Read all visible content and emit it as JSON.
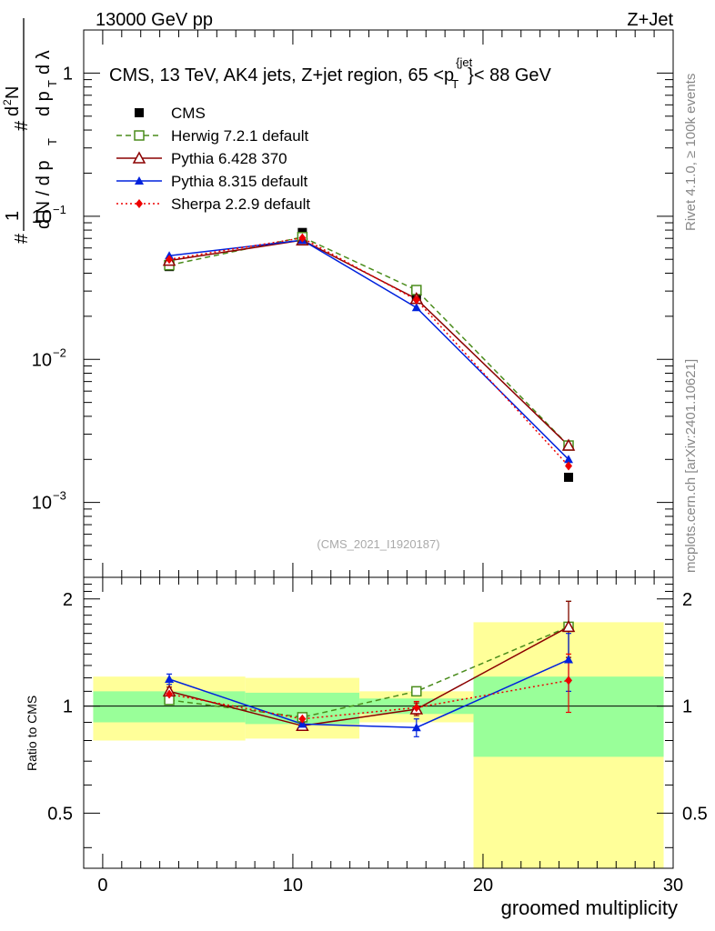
{
  "header": {
    "left": "13000 GeV pp",
    "right": "Z+Jet"
  },
  "side": {
    "rivet": "Rivet 4.1.0, ≥ 100k events",
    "mcplots": "mcplots.cern.ch [arXiv:2401.10621]"
  },
  "watermark": "(CMS_2021_I1920187)",
  "chart_data": {
    "type": "line",
    "title_parts": {
      "main": "CMS, 13 TeV, AK4 jets, Z+jet region, 65 <p",
      "sup": "{jet",
      "sub": "T",
      "tail": "}< 88 GeV"
    },
    "xlabel": "groomed multiplicity",
    "ylabel": {
      "one": "1",
      "hashN": "#",
      "dN": "d N / d p",
      "T": "T",
      "hash2": "#",
      "d2N": "d",
      "two": "2",
      "N2": "N",
      "dpT": "d p",
      "dl": "d λ"
    },
    "ratio_ylabel": "Ratio to CMS",
    "xlim": [
      -1,
      30
    ],
    "x_ticks": [
      "0",
      "10",
      "20",
      "30"
    ],
    "main_ylim": [
      0.0003,
      2.0
    ],
    "main_y_ticks": [
      {
        "value": 1,
        "label": "1"
      },
      {
        "value": 0.1,
        "base": "10",
        "exp": "−1"
      },
      {
        "value": 0.01,
        "base": "10",
        "exp": "−2"
      },
      {
        "value": 0.001,
        "base": "10",
        "exp": "−3"
      }
    ],
    "ratio_ylim": [
      0.35,
      2.3
    ],
    "ratio_y_ticks": [
      "0.5",
      "1",
      "2"
    ],
    "bins": [
      {
        "low": -0.5,
        "high": 7.5,
        "center": 3.5
      },
      {
        "low": 7.5,
        "high": 13.5,
        "center": 10.5
      },
      {
        "low": 13.5,
        "high": 19.5,
        "center": 16.5
      },
      {
        "low": 19.5,
        "high": 29.5,
        "center": 24.5
      }
    ],
    "data": {
      "name": "CMS",
      "values": [
        0.0445,
        0.077,
        0.027,
        0.0015
      ],
      "band_inner": [
        [
          0.9,
          1.1
        ],
        [
          0.89,
          1.09
        ],
        [
          0.95,
          1.05
        ],
        [
          0.72,
          1.21
        ]
      ],
      "band_outer": [
        [
          0.8,
          1.21
        ],
        [
          0.81,
          1.2
        ],
        [
          0.9,
          1.1
        ],
        [
          0.3,
          1.72
        ]
      ]
    },
    "series": [
      {
        "name": "Herwig 7.2.1 default",
        "color": "#4a8c1c",
        "dash": "6,4",
        "marker": "open-square",
        "values": [
          0.0455,
          0.0715,
          0.0305,
          0.0025
        ],
        "ratio": [
          1.04,
          0.93,
          1.1,
          1.67
        ],
        "ratio_err": [
          0.02,
          0.02,
          0.03,
          0.3
        ]
      },
      {
        "name": "Pythia 6.428 370",
        "color": "#8b0000",
        "dash": "",
        "marker": "open-triangle",
        "values": [
          0.049,
          0.068,
          0.0265,
          0.0025
        ],
        "ratio": [
          1.1,
          0.88,
          0.98,
          1.67
        ],
        "ratio_err": [
          0.03,
          0.02,
          0.04,
          0.3
        ]
      },
      {
        "name": "Pythia 8.315 default",
        "color": "#0022dd",
        "dash": "",
        "marker": "filled-triangle",
        "values": [
          0.053,
          0.068,
          0.023,
          0.002
        ],
        "ratio": [
          1.19,
          0.89,
          0.87,
          1.35
        ],
        "ratio_err": [
          0.04,
          0.02,
          0.05,
          0.25
        ]
      },
      {
        "name": "Sherpa 2.2.9 default",
        "color": "#ee0000",
        "dash": "2,3",
        "marker": "diamond",
        "values": [
          0.05,
          0.0705,
          0.026,
          0.0018
        ],
        "ratio": [
          1.08,
          0.92,
          0.99,
          1.18
        ],
        "ratio_err": [
          0.03,
          0.03,
          0.04,
          0.22
        ]
      }
    ],
    "legend_position": "top-left"
  }
}
